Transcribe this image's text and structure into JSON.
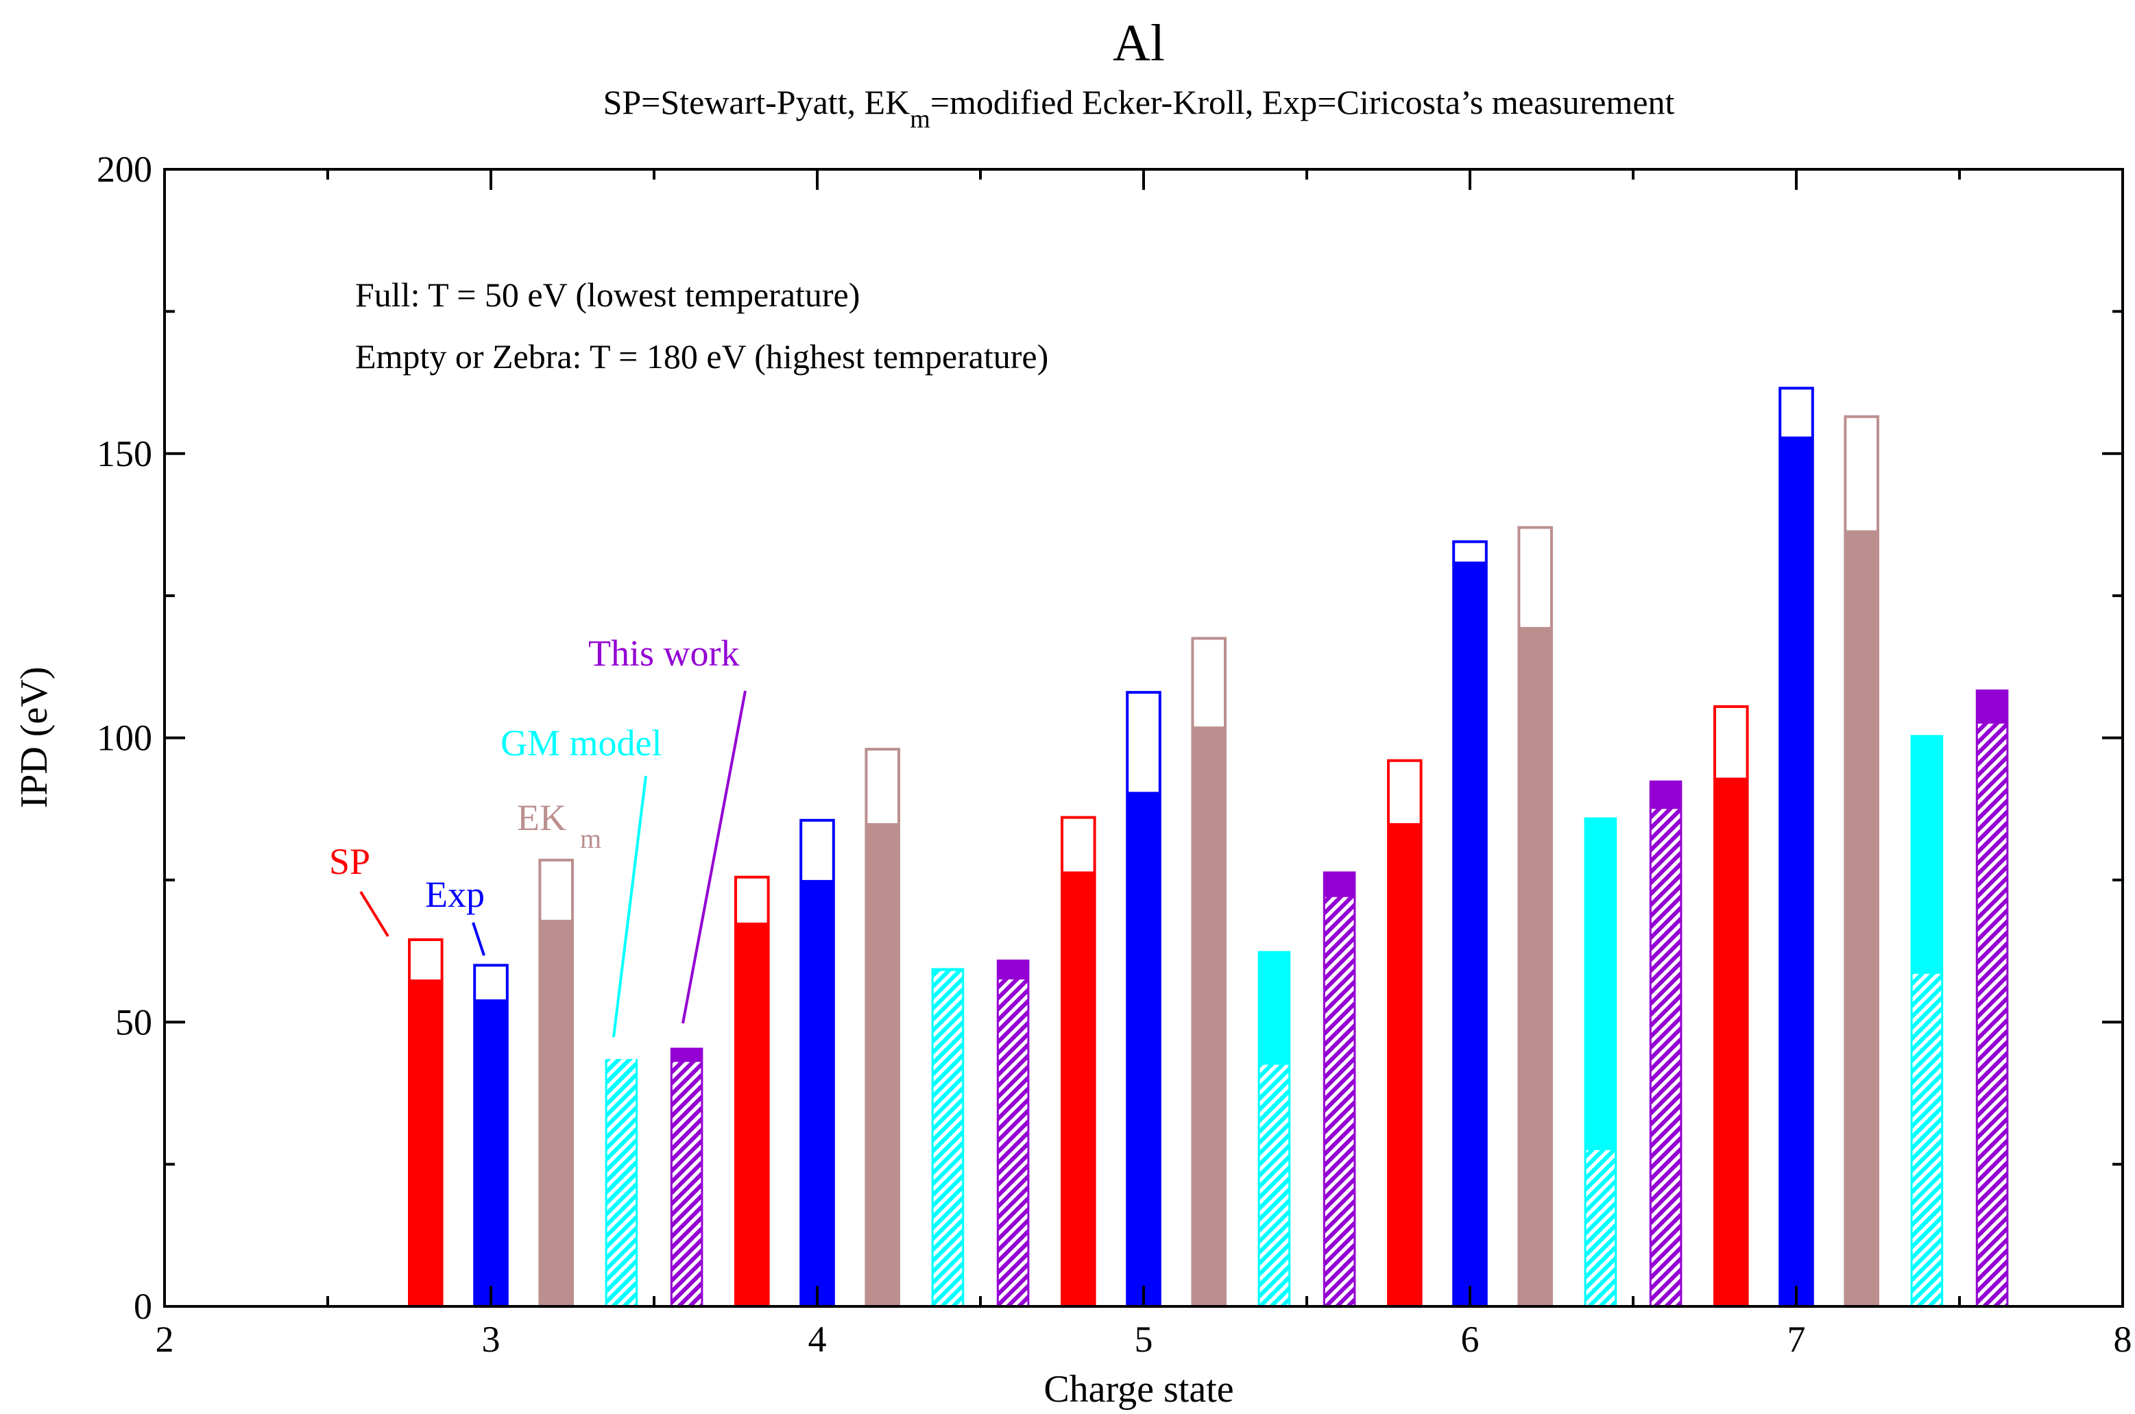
{
  "chart_data": {
    "type": "bar",
    "title": "Al",
    "subtitle": {
      "pre": "SP=Stewart-Pyatt, EK",
      "sub": "m",
      "post": "=modified Ecker-Kroll, Exp=Ciricosta’s measurement"
    },
    "xlabel": "Charge state",
    "ylabel": "IPD (eV)",
    "xlim": [
      2,
      8
    ],
    "ylim": [
      0,
      200
    ],
    "xticks": [
      2,
      3,
      4,
      5,
      6,
      7,
      8
    ],
    "yticks": [
      0,
      50,
      100,
      150,
      200
    ],
    "annotations": {
      "full": "Full: T = 50 eV (lowest temperature)",
      "empty": "Empty or Zebra: T = 180 eV (highest temperature)"
    },
    "labels": {
      "sp": "SP",
      "exp": "Exp",
      "ekm": "EK",
      "ekm_sub": "m",
      "gm": "GM model",
      "this": "This work"
    },
    "colors": {
      "SP": "#ff0000",
      "Exp": "#0000ff",
      "EKm": "#bc8f8f",
      "GM": "#00ffff",
      "This": "#9400d3",
      "axis": "#000000"
    },
    "categories": [
      3,
      4,
      5,
      6,
      7
    ],
    "bar_width": 0.1,
    "series": [
      {
        "name": "SP",
        "offset": -0.2,
        "low_T": [
          64.5,
          75.5,
          86,
          96,
          105.5
        ],
        "high_T": [
          57.5,
          67.5,
          76.5,
          85,
          93
        ]
      },
      {
        "name": "Exp",
        "offset": 0.0,
        "low_T": [
          60,
          85.5,
          108,
          134.5,
          161.5
        ],
        "high_T": [
          54,
          75,
          90.5,
          131,
          153
        ]
      },
      {
        "name": "EKm",
        "offset": 0.2,
        "low_T": [
          78.5,
          98,
          117.5,
          137,
          156.5
        ],
        "high_T": [
          68,
          85,
          102,
          119.5,
          136.5
        ]
      },
      {
        "name": "GM",
        "offset": 0.4,
        "low_T": [
          43.5,
          59.5,
          62.5,
          86,
          100.5
        ],
        "high_T": [
          43.5,
          59,
          42.5,
          27.5,
          58.5
        ]
      },
      {
        "name": "This",
        "offset": 0.6,
        "low_T": [
          45.5,
          61,
          76.5,
          92.5,
          108.5
        ],
        "high_T": [
          43,
          57.5,
          72,
          87.5,
          102.5
        ]
      }
    ]
  }
}
